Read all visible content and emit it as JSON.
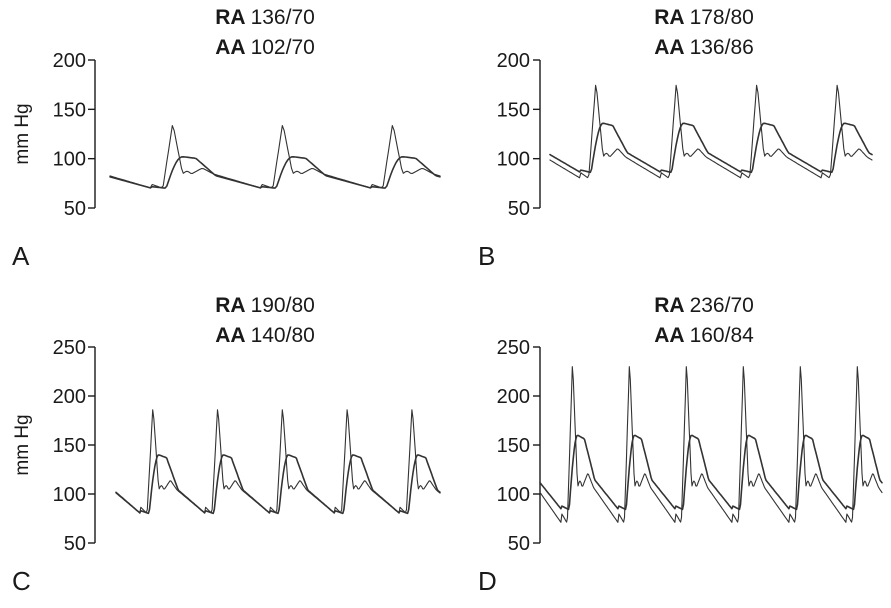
{
  "chart_data": [
    {
      "type": "line",
      "panel": "A",
      "header": {
        "ra_label": "RA",
        "ra_value": "136/70",
        "aa_label": "AA",
        "aa_value": "102/70"
      },
      "ylabel": "mm Hg",
      "ylim": [
        50,
        200
      ],
      "yticks": [
        50,
        100,
        150,
        200
      ],
      "cycles": 3,
      "series": [
        {
          "name": "RA",
          "values": [
            136,
            70
          ],
          "color": "#333333"
        },
        {
          "name": "AA",
          "values": [
            102,
            70
          ],
          "color": "#333333"
        }
      ]
    },
    {
      "type": "line",
      "panel": "B",
      "header": {
        "ra_label": "RA",
        "ra_value": "178/80",
        "aa_label": "AA",
        "aa_value": "136/86"
      },
      "ylabel": "",
      "ylim": [
        50,
        200
      ],
      "yticks": [
        50,
        100,
        150,
        200
      ],
      "cycles": 4,
      "series": [
        {
          "name": "RA",
          "values": [
            178,
            80
          ],
          "color": "#333333"
        },
        {
          "name": "AA",
          "values": [
            136,
            86
          ],
          "color": "#333333"
        }
      ]
    },
    {
      "type": "line",
      "panel": "C",
      "header": {
        "ra_label": "RA",
        "ra_value": "190/80",
        "aa_label": "AA",
        "aa_value": "140/80"
      },
      "ylabel": "mm Hg",
      "ylim": [
        50,
        250
      ],
      "yticks": [
        50,
        100,
        150,
        200,
        250
      ],
      "cycles": 5,
      "series": [
        {
          "name": "RA",
          "values": [
            190,
            80
          ],
          "color": "#333333"
        },
        {
          "name": "AA",
          "values": [
            140,
            80
          ],
          "color": "#333333"
        }
      ]
    },
    {
      "type": "line",
      "panel": "D",
      "header": {
        "ra_label": "RA",
        "ra_value": "236/70",
        "aa_label": "AA",
        "aa_value": "160/84"
      },
      "ylabel": "",
      "ylim": [
        50,
        250
      ],
      "yticks": [
        50,
        100,
        150,
        200,
        250
      ],
      "cycles": 6,
      "series": [
        {
          "name": "RA",
          "values": [
            236,
            70
          ],
          "color": "#333333"
        },
        {
          "name": "AA",
          "values": [
            160,
            84
          ],
          "color": "#333333"
        }
      ]
    }
  ]
}
